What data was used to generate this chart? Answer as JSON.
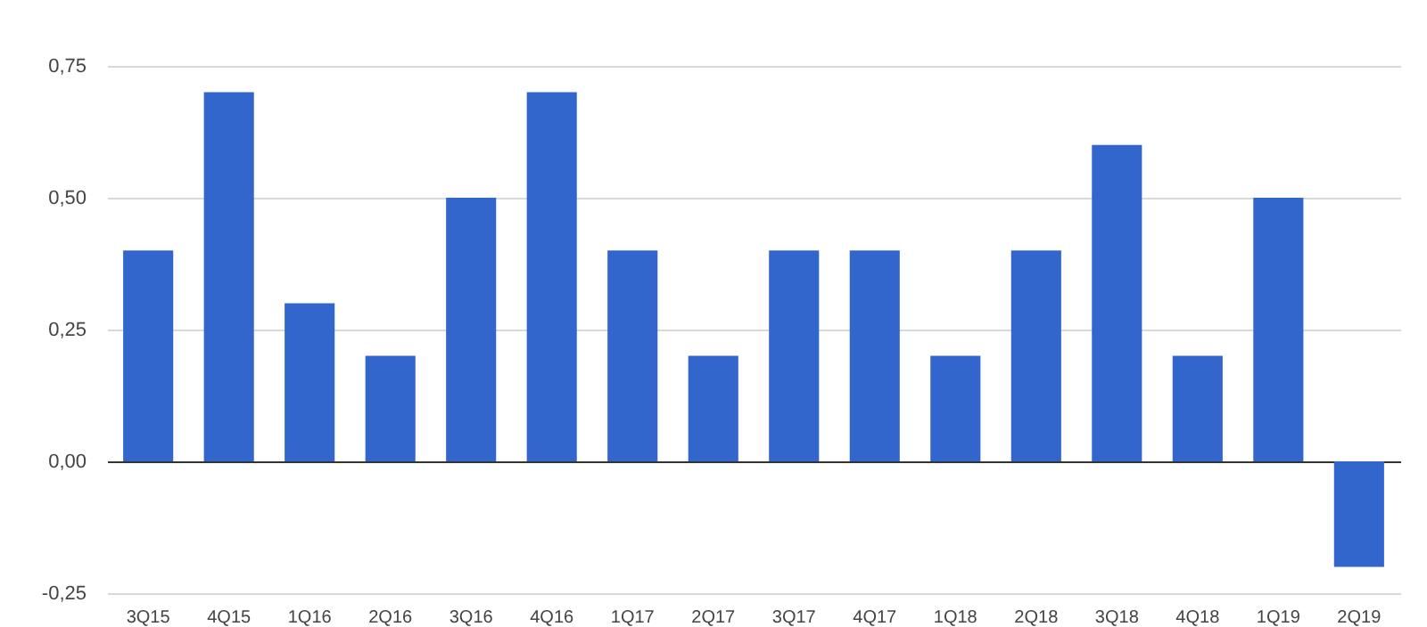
{
  "chart_data": {
    "type": "bar",
    "categories": [
      "3Q15",
      "4Q15",
      "1Q16",
      "2Q16",
      "3Q16",
      "4Q16",
      "1Q17",
      "2Q17",
      "3Q17",
      "4Q17",
      "1Q18",
      "2Q18",
      "3Q18",
      "4Q18",
      "1Q19",
      "2Q19"
    ],
    "values": [
      0.4,
      0.7,
      0.3,
      0.2,
      0.5,
      0.7,
      0.4,
      0.2,
      0.4,
      0.4,
      0.2,
      0.4,
      0.6,
      0.2,
      0.5,
      -0.2
    ],
    "color": "#3366cc",
    "ylim": [
      -0.25,
      0.75
    ],
    "yticks": [
      {
        "value": -0.25,
        "label": "-0,25"
      },
      {
        "value": 0,
        "label": "0,00"
      },
      {
        "value": 0.25,
        "label": "0,25"
      },
      {
        "value": 0.5,
        "label": "0,50"
      },
      {
        "value": 0.75,
        "label": "0,75"
      }
    ],
    "grid": "y"
  }
}
